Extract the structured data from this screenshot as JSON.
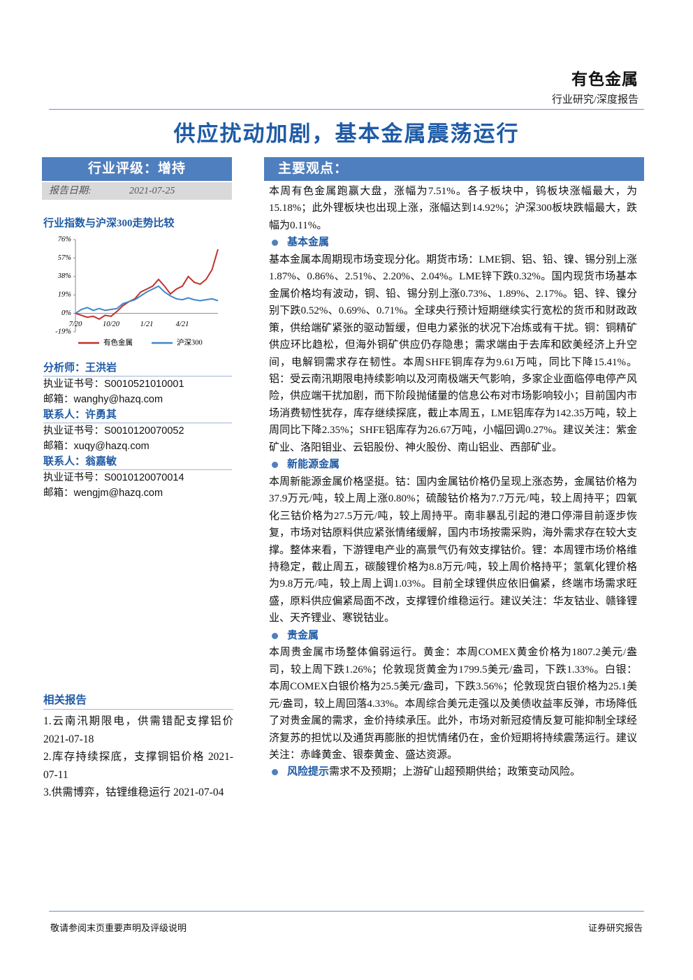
{
  "header": {
    "category": "有色金属",
    "subtitle": "行业研究/深度报告"
  },
  "title": "供应扰动加剧，基本金属震荡运行",
  "sidebar": {
    "rating": "行业评级：增持",
    "date_label": "报告日期:",
    "date": "2021-07-25"
  },
  "chart_data": {
    "type": "line",
    "title": "行业指数与沪深300走势比较",
    "categories": [
      "7/20",
      null,
      null,
      null,
      null,
      null,
      "10/20",
      null,
      null,
      null,
      null,
      null,
      "1/21",
      null,
      null,
      null,
      null,
      null,
      "4/21",
      null,
      null,
      null,
      null,
      null,
      null
    ],
    "series": [
      {
        "name": "有色金属",
        "color": "#c0302b",
        "values": [
          0,
          -2,
          -4,
          -3,
          -6,
          -2,
          -3,
          2,
          8,
          12,
          15,
          22,
          25,
          28,
          35,
          28,
          20,
          25,
          28,
          38,
          32,
          30,
          35,
          45,
          66
        ]
      },
      {
        "name": "沪深300",
        "color": "#3f86cc",
        "values": [
          0,
          4,
          6,
          3,
          5,
          3,
          4,
          5,
          10,
          12,
          14,
          18,
          22,
          25,
          28,
          22,
          18,
          15,
          14,
          16,
          14,
          13,
          14,
          15,
          13
        ]
      }
    ],
    "ylim": [
      -19,
      76
    ],
    "yticks": [
      {
        "value": -19,
        "label": "-19%"
      },
      {
        "value": 0,
        "label": "0%"
      },
      {
        "value": 19,
        "label": "19%"
      },
      {
        "value": 38,
        "label": "38%"
      },
      {
        "value": 57,
        "label": "57%"
      },
      {
        "value": 76,
        "label": "76%"
      }
    ],
    "legend": "bottom"
  },
  "analysts": [
    {
      "role": "分析师：王洪岩",
      "cert": "执业证书号：S0010521010001",
      "email": "邮箱：wanghy@hazq.com"
    },
    {
      "role": "联系人：许勇其",
      "cert": "执业证书号：S0010120070052",
      "email": "邮箱：xuqy@hazq.com"
    },
    {
      "role": "联系人：翁嘉敏",
      "cert": "执业证书号：S0010120070014",
      "email": "邮箱：wengjm@hazq.com"
    }
  ],
  "related": {
    "title": "相关报告",
    "items": [
      "1.云南汛期限电，供需错配支撑铝价 2021-07-18",
      "2.库存持续探底，支撑铜铝价格 2021-07-11",
      "3.供需博弈，钴锂维稳运行 2021-07-04"
    ]
  },
  "main": {
    "heading": "主要观点：",
    "intro": "本周有色金属跑赢大盘，涨幅为7.51%。各子板块中，钨板块涨幅最大，为15.18%；此外锂板块也出现上涨，涨幅达到14.92%；沪深300板块跌幅最大，跌幅为0.11%。",
    "sections": [
      {
        "heading": "基本金属",
        "text": "基本金属本周期现市场变现分化。期货市场：LME铜、铝、铅、镍、锡分别上涨1.87%、0.86%、2.51%、2.20%、2.04%。LME锌下跌0.32%。国内现货市场基本金属价格均有波动，铜、铅、锡分别上涨0.73%、1.89%、2.17%。铝、锌、镍分别下跌0.52%、0.69%、0.71%。全球央行预计短期继续实行宽松的货币和财政政策，供给端矿紧张的驱动暂缓，但电力紧张的状况下冶炼或有干扰。铜：铜精矿供应环比趋松，但海外铜矿供应仍存隐患；需求端由于去库和欧美经济上升空间，电解铜需求存在韧性。本周SHFE铜库存为9.61万吨，同比下降15.41%。铝：受云南汛期限电持续影响以及河南极端天气影响，多家企业面临停电停产风险，供应端干扰加剧，而下阶段抛储量的信息公布对市场影响较小；目前国内市场消费韧性犹存，库存继续探底，截止本周五，LME铝库存为142.35万吨，较上周同比下降2.35%；SHFE铝库存为26.67万吨，小幅回调0.27%。建议关注：紫金矿业、洛阳钼业、云铝股份、神火股份、南山铝业、西部矿业。"
      },
      {
        "heading": "新能源金属",
        "text": "本周新能源金属价格坚挺。钴：国内金属钴价格仍呈现上涨态势，金属钴价格为37.9万元/吨，较上周上涨0.80%；硫酸钴价格为7.7万元/吨，较上周持平；四氧化三钴价格为27.5万元/吨，较上周持平。南非暴乱引起的港口停滞目前逐步恢复，市场对钴原料供应紧张情绪缓解，国内市场按需采购，海外需求存在较大支撑。整体来看，下游锂电产业的高景气仍有效支撑钴价。锂：本周锂市场价格维持稳定，截止周五，碳酸锂价格为8.8万元/吨，较上周价格持平；氢氧化锂价格为9.8万元/吨，较上周上调1.03%。目前全球锂供应依旧偏紧，终端市场需求旺盛，原料供应偏紧局面不改，支撑锂价维稳运行。建议关注：华友钴业、赣锋锂业、天齐锂业、寒锐钴业。"
      },
      {
        "heading": "贵金属",
        "text": "本周贵金属市场整体偏弱运行。黄金：本周COMEX黄金价格为1807.2美元/盎司，较上周下跌1.26%；伦敦现货黄金为1799.5美元/盎司，下跌1.33%。白银：本周COMEX白银价格为25.5美元/盎司，下跌3.56%；伦敦现货白银价格为25.1美元/盎司，较上周回落4.33%。本周综合美元走强以及美债收益率反弹，市场降低了对贵金属的需求，金价持续承压。此外，市场对新冠疫情反复可能抑制全球经济复苏的担忧以及通货再膨胀的担忧情绪仍在，金价短期将持续震荡运行。建议关注：赤峰黄金、银泰黄金、盛达资源。"
      }
    ],
    "risk": {
      "heading": "风险提示",
      "text": "需求不及预期；上游矿山超预期供给；政策变动风险。"
    }
  },
  "footer": {
    "left": "敬请参阅末页重要声明及评级说明",
    "right": "证券研究报告"
  }
}
